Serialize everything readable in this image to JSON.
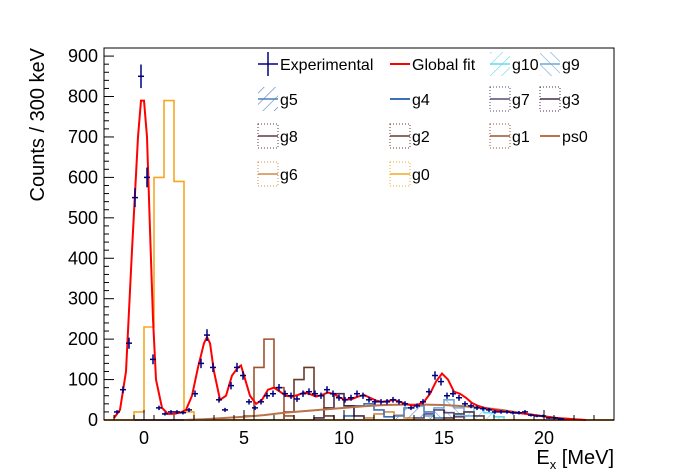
{
  "chart_data": {
    "type": "histogram",
    "xlabel": "E",
    "xlabel_sub": "x",
    "xlabel_unit": " [MeV]",
    "ylabel": "Counts / 300 keV",
    "xlim": [
      -2,
      23.5
    ],
    "ylim": [
      0,
      920
    ],
    "x_ticks": [
      0,
      5,
      10,
      15,
      20
    ],
    "y_ticks": [
      0,
      100,
      200,
      300,
      400,
      500,
      600,
      700,
      800,
      900
    ],
    "grid": false,
    "legend": [
      {
        "name": "Experimental",
        "style": "errorbar",
        "color": "#00007f"
      },
      {
        "name": "Global fit",
        "style": "line",
        "color": "#ff0000"
      },
      {
        "name": "g10",
        "style": "hatch",
        "color": "#66d9e8"
      },
      {
        "name": "g9",
        "style": "hatch",
        "color": "#6fa8dc"
      },
      {
        "name": "g5",
        "style": "hatch",
        "color": "#4f7fc0"
      },
      {
        "name": "g4",
        "style": "line",
        "color": "#3b6fb6"
      },
      {
        "name": "g7",
        "style": "step",
        "color": "#5a4a7a"
      },
      {
        "name": "g3",
        "style": "step",
        "color": "#4a2a4a"
      },
      {
        "name": "g8",
        "style": "step",
        "color": "#5c3a4a"
      },
      {
        "name": "g2",
        "style": "step",
        "color": "#6b3a2a"
      },
      {
        "name": "g1",
        "style": "step",
        "color": "#a0522d"
      },
      {
        "name": "ps0",
        "style": "line",
        "color": "#b8734a"
      },
      {
        "name": "g6",
        "style": "step",
        "color": "#d28c4a"
      },
      {
        "name": "g0",
        "style": "step",
        "color": "#f5a623"
      }
    ],
    "experimental": {
      "x": [
        -1.35,
        -1.05,
        -0.75,
        -0.45,
        -0.15,
        0.15,
        0.45,
        0.75,
        1.05,
        1.35,
        1.65,
        1.95,
        2.25,
        2.55,
        2.85,
        3.15,
        3.45,
        3.75,
        4.05,
        4.35,
        4.65,
        4.95,
        5.25,
        5.55,
        5.85,
        6.15,
        6.45,
        6.75,
        7.05,
        7.35,
        7.65,
        7.95,
        8.25,
        8.55,
        8.85,
        9.15,
        9.45,
        9.75,
        10.05,
        10.35,
        10.65,
        10.95,
        11.25,
        11.55,
        11.85,
        12.15,
        12.45,
        12.75,
        13.05,
        13.35,
        13.65,
        13.95,
        14.25,
        14.55,
        14.85,
        15.15,
        15.45,
        15.75,
        16.05,
        16.35,
        16.65,
        16.95,
        17.25,
        17.55,
        17.85,
        18.15,
        18.45,
        18.75,
        19.05,
        19.35,
        19.65,
        19.95,
        20.25,
        20.55,
        20.85
      ],
      "y": [
        20,
        75,
        190,
        550,
        850,
        600,
        150,
        30,
        15,
        20,
        20,
        18,
        25,
        65,
        140,
        210,
        130,
        50,
        25,
        85,
        130,
        110,
        45,
        30,
        45,
        60,
        65,
        80,
        65,
        60,
        52,
        65,
        70,
        65,
        60,
        75,
        65,
        55,
        50,
        55,
        65,
        60,
        50,
        45,
        45,
        45,
        50,
        45,
        40,
        30,
        35,
        45,
        70,
        110,
        95,
        60,
        65,
        55,
        40,
        35,
        30,
        28,
        25,
        20,
        20,
        20,
        18,
        18,
        20,
        12,
        10,
        10,
        5,
        5,
        3
      ],
      "yerr_sqrt": true
    },
    "global_fit": {
      "x": [
        -1.5,
        -1.2,
        -0.9,
        -0.6,
        -0.3,
        -0.15,
        0.0,
        0.15,
        0.3,
        0.45,
        0.6,
        0.9,
        1.2,
        1.5,
        1.8,
        2.1,
        2.4,
        2.7,
        3.0,
        3.15,
        3.3,
        3.5,
        3.8,
        4.1,
        4.4,
        4.7,
        4.85,
        5.0,
        5.3,
        5.6,
        5.9,
        6.2,
        6.5,
        6.8,
        7.1,
        7.4,
        7.7,
        8.0,
        8.3,
        8.6,
        8.9,
        9.2,
        9.5,
        9.8,
        10.1,
        10.4,
        10.7,
        11.0,
        11.3,
        11.6,
        11.9,
        12.2,
        12.5,
        12.8,
        13.1,
        13.4,
        13.7,
        14.0,
        14.3,
        14.6,
        14.9,
        15.2,
        15.5,
        15.8,
        16.1,
        16.4,
        16.7,
        17.0,
        17.3,
        17.6,
        17.9,
        18.2,
        18.5,
        18.8,
        19.1,
        19.4,
        19.7,
        20.0,
        20.3,
        20.6,
        20.9,
        21.2,
        21.5,
        21.8,
        22.1
      ],
      "y": [
        5,
        25,
        120,
        420,
        700,
        790,
        790,
        700,
        470,
        250,
        100,
        30,
        15,
        15,
        18,
        25,
        60,
        130,
        190,
        205,
        190,
        120,
        50,
        60,
        110,
        130,
        135,
        110,
        60,
        40,
        50,
        75,
        80,
        70,
        60,
        58,
        62,
        68,
        64,
        58,
        62,
        68,
        64,
        55,
        50,
        52,
        58,
        62,
        55,
        48,
        45,
        47,
        50,
        45,
        40,
        36,
        38,
        45,
        65,
        95,
        115,
        100,
        70,
        65,
        55,
        42,
        35,
        30,
        27,
        24,
        22,
        20,
        18,
        17,
        15,
        13,
        11,
        9,
        7,
        5,
        4,
        3,
        2,
        1,
        0
      ]
    },
    "components": {
      "bins_start": -2.0,
      "bin_width": 0.5,
      "g0": [
        0,
        0,
        0,
        20,
        230,
        600,
        790,
        590,
        20,
        0,
        0,
        0,
        0,
        0,
        0,
        0,
        0,
        0,
        0,
        0,
        0,
        0,
        0,
        0,
        0,
        0,
        0,
        0,
        0,
        0,
        0,
        0,
        0,
        0,
        0,
        0,
        0,
        0,
        0,
        0,
        0,
        0,
        0,
        0,
        0,
        0,
        0,
        0,
        0,
        0,
        0
      ],
      "g1": [
        0,
        0,
        0,
        0,
        0,
        0,
        0,
        0,
        0,
        0,
        0,
        0,
        0,
        0,
        10,
        130,
        200,
        80,
        10,
        0,
        0,
        0,
        0,
        0,
        0,
        0,
        0,
        0,
        0,
        0,
        0,
        0,
        0,
        0,
        0,
        0,
        0,
        0,
        0,
        0,
        0,
        0,
        0,
        0,
        0,
        0,
        0,
        0,
        0,
        0,
        0
      ],
      "g2": [
        0,
        0,
        0,
        0,
        0,
        0,
        0,
        0,
        0,
        0,
        0,
        0,
        0,
        0,
        0,
        0,
        0,
        0,
        20,
        100,
        130,
        60,
        10,
        0,
        0,
        0,
        0,
        0,
        0,
        0,
        0,
        0,
        0,
        0,
        0,
        0,
        0,
        0,
        0,
        0,
        0,
        0,
        0,
        0,
        0,
        0,
        0,
        0,
        0,
        0,
        0
      ],
      "g3": [
        0,
        0,
        0,
        0,
        0,
        0,
        0,
        0,
        0,
        0,
        0,
        0,
        0,
        0,
        0,
        0,
        0,
        0,
        0,
        0,
        0,
        5,
        30,
        65,
        35,
        10,
        0,
        0,
        0,
        0,
        0,
        0,
        0,
        0,
        0,
        0,
        0,
        0,
        0,
        0,
        0,
        0,
        0,
        0,
        0,
        0,
        0,
        0,
        0,
        0,
        0
      ],
      "g4": [
        0,
        0,
        0,
        0,
        0,
        0,
        0,
        0,
        0,
        0,
        0,
        0,
        0,
        0,
        0,
        0,
        0,
        0,
        0,
        0,
        0,
        0,
        0,
        0,
        10,
        35,
        40,
        25,
        8,
        0,
        0,
        0,
        0,
        0,
        0,
        0,
        0,
        0,
        0,
        0,
        0,
        0,
        0,
        0,
        0,
        0,
        0,
        0,
        0,
        0,
        0
      ],
      "g5": [
        0,
        0,
        0,
        0,
        0,
        0,
        0,
        0,
        0,
        0,
        0,
        0,
        0,
        0,
        0,
        0,
        0,
        0,
        0,
        0,
        0,
        0,
        0,
        0,
        0,
        0,
        0,
        0,
        0,
        10,
        30,
        35,
        20,
        5,
        0,
        0,
        0,
        0,
        0,
        0,
        0,
        0,
        0,
        0,
        0,
        0,
        0,
        0,
        0,
        0,
        0
      ],
      "g6": [
        0,
        0,
        0,
        0,
        0,
        0,
        0,
        0,
        0,
        0,
        0,
        0,
        0,
        0,
        0,
        0,
        0,
        0,
        0,
        0,
        0,
        0,
        0,
        0,
        0,
        0,
        5,
        15,
        20,
        12,
        5,
        0,
        0,
        0,
        0,
        0,
        0,
        0,
        0,
        0,
        0,
        0,
        0,
        0,
        0,
        0,
        0,
        0,
        0,
        0,
        0
      ],
      "g7": [
        0,
        0,
        0,
        0,
        0,
        0,
        0,
        0,
        0,
        0,
        0,
        0,
        0,
        0,
        0,
        0,
        0,
        0,
        0,
        0,
        0,
        0,
        0,
        0,
        0,
        0,
        0,
        0,
        0,
        0,
        0,
        5,
        15,
        25,
        18,
        8,
        0,
        0,
        0,
        0,
        0,
        0,
        0,
        0,
        0,
        0,
        0,
        0,
        0,
        0,
        0
      ],
      "g8": [
        0,
        0,
        0,
        0,
        0,
        0,
        0,
        0,
        0,
        0,
        0,
        0,
        0,
        0,
        0,
        0,
        0,
        0,
        0,
        0,
        0,
        0,
        0,
        0,
        0,
        0,
        0,
        0,
        0,
        0,
        0,
        0,
        0,
        0,
        5,
        15,
        20,
        10,
        0,
        0,
        0,
        0,
        0,
        0,
        0,
        0,
        0,
        0,
        0,
        0,
        0
      ],
      "g9": [
        0,
        0,
        0,
        0,
        0,
        0,
        0,
        0,
        0,
        0,
        0,
        0,
        0,
        0,
        0,
        0,
        0,
        0,
        0,
        0,
        0,
        0,
        0,
        0,
        0,
        0,
        0,
        0,
        0,
        0,
        0,
        0,
        10,
        30,
        50,
        30,
        10,
        0,
        0,
        0,
        0,
        0,
        0,
        0,
        0,
        0,
        0,
        0,
        0,
        0,
        0
      ],
      "g10": [
        0,
        0,
        0,
        0,
        0,
        0,
        0,
        0,
        0,
        0,
        0,
        0,
        0,
        0,
        0,
        0,
        0,
        0,
        0,
        0,
        0,
        0,
        0,
        0,
        0,
        0,
        0,
        0,
        0,
        0,
        0,
        0,
        0,
        0,
        0,
        10,
        20,
        30,
        18,
        8,
        0,
        0,
        0,
        0,
        0,
        0,
        0,
        0,
        0,
        0,
        0
      ],
      "ps0": {
        "x": [
          2,
          3,
          4,
          5,
          6,
          7,
          8,
          9,
          10,
          11,
          12,
          13,
          14,
          15,
          16,
          17,
          18,
          19,
          20,
          21,
          22
        ],
        "y": [
          0,
          2,
          5,
          8,
          12,
          18,
          22,
          26,
          30,
          34,
          37,
          38,
          38,
          37,
          34,
          30,
          24,
          16,
          9,
          3,
          0
        ]
      }
    }
  }
}
